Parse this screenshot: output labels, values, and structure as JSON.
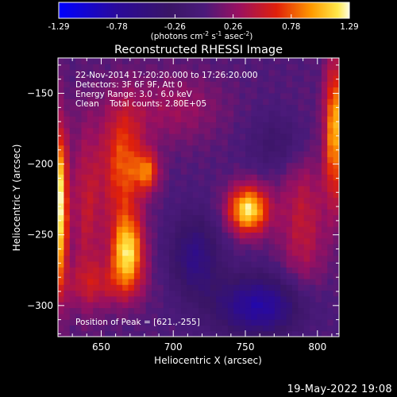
{
  "chart_data": {
    "type": "heatmap",
    "title": "Reconstructed RHESSI Image",
    "xlabel": "Heliocentric X (arcsec)",
    "ylabel": "Heliocentric Y (arcsec)",
    "x_range": [
      620,
      815
    ],
    "y_range": [
      -322,
      -125
    ],
    "x_ticks": [
      650,
      700,
      750,
      800
    ],
    "y_ticks": [
      -150,
      -200,
      -250,
      -300
    ],
    "colorbar": {
      "range": [
        -1.29,
        1.29
      ],
      "ticks": [
        "-1.29",
        "-0.78",
        "-0.26",
        "0.26",
        "0.78",
        "1.29"
      ],
      "unit_base": "(photons cm",
      "unit_sup1": "-2",
      "unit_mid1": " s",
      "unit_sup2": "-1",
      "unit_mid2": " asec",
      "unit_sup3": "-2",
      "unit_end": ")",
      "colormap": "black-blue-violet-red-orange-yellow-white"
    },
    "annotations": [
      "22-Nov-2014 17:20:20.000 to 17:26:20.000",
      "Detectors: 3F 6F 9F, Att 0",
      "Energy Range: 3.0 - 6.0 keV",
      "Clean    Total counts: 2.80E+05"
    ],
    "peak_label": "Position of Peak = [621.,-255]",
    "sources": [
      {
        "x": 621,
        "y": -230,
        "sx": 4,
        "sy": 40,
        "peak": 1.25
      },
      {
        "x": 668,
        "y": -262,
        "sx": 8,
        "sy": 18,
        "peak": 1.1
      },
      {
        "x": 665,
        "y": -200,
        "sx": 10,
        "sy": 30,
        "peak": 0.75
      },
      {
        "x": 682,
        "y": -205,
        "sx": 6,
        "sy": 10,
        "peak": 0.7
      },
      {
        "x": 752,
        "y": -232,
        "sx": 10,
        "sy": 12,
        "peak": 1.2
      },
      {
        "x": 640,
        "y": -230,
        "sx": 8,
        "sy": 45,
        "peak": 0.45
      },
      {
        "x": 812,
        "y": -175,
        "sx": 5,
        "sy": 35,
        "peak": 1.0
      },
      {
        "x": 790,
        "y": -240,
        "sx": 12,
        "sy": 40,
        "peak": 0.45
      },
      {
        "x": 700,
        "y": -160,
        "sx": 25,
        "sy": 18,
        "peak": 0.3
      },
      {
        "x": 650,
        "y": -285,
        "sx": 20,
        "sy": 12,
        "peak": 0.35
      },
      {
        "x": 715,
        "y": -265,
        "sx": 12,
        "sy": 20,
        "peak": -0.6
      },
      {
        "x": 760,
        "y": -300,
        "sx": 22,
        "sy": 15,
        "peak": -0.85
      },
      {
        "x": 775,
        "y": -185,
        "sx": 15,
        "sy": 15,
        "peak": -0.3
      }
    ]
  },
  "footer": {
    "timestamp": "19-May-2022 19:08"
  }
}
